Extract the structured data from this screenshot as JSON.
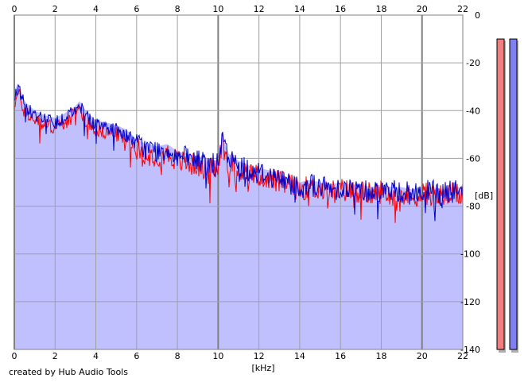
{
  "credit": "created by Hub Audio Tools",
  "colors": {
    "series_left": "#ff0000",
    "series_right": "#0000cc",
    "fill": "#c0c0ff",
    "grid": "#a0a0a0",
    "grid_major": "#808080",
    "meter_left": "#f08080",
    "meter_right": "#8080f0"
  },
  "chart_data": {
    "type": "line",
    "title": "",
    "xlabel": "[kHz]",
    "ylabel": "[dB]",
    "xlim": [
      0,
      22
    ],
    "ylim": [
      -140,
      0
    ],
    "x_ticks": [
      "0",
      "2",
      "4",
      "6",
      "8",
      "10",
      "12",
      "14",
      "16",
      "18",
      "20",
      "22"
    ],
    "y_ticks": [
      "0",
      "-20",
      "-40",
      "-60",
      "-80",
      "-100",
      "-120",
      "-140"
    ],
    "x_tick_values": [
      0,
      2,
      4,
      6,
      8,
      10,
      12,
      14,
      16,
      18,
      20,
      22
    ],
    "y_tick_values": [
      0,
      -20,
      -40,
      -60,
      -80,
      -100,
      -120,
      -140
    ],
    "grid": true,
    "area_fill": true,
    "series": [
      {
        "color": "#ff0000",
        "x": [
          0.0,
          0.2,
          0.5,
          1.0,
          1.5,
          2.0,
          2.5,
          3.0,
          3.2,
          3.5,
          4.0,
          4.5,
          5.0,
          5.5,
          6.0,
          6.5,
          7.0,
          7.5,
          8.0,
          8.5,
          9.0,
          9.5,
          10.0,
          10.2,
          10.5,
          11.0,
          11.5,
          12.0,
          12.5,
          13.0,
          13.5,
          14.0,
          14.5,
          15.0,
          15.5,
          16.0,
          16.5,
          17.0,
          17.5,
          18.0,
          18.5,
          19.0,
          19.5,
          20.0,
          20.5,
          21.0,
          21.5,
          22.0
        ],
        "y": [
          -37,
          -33,
          -40,
          -44,
          -46,
          -47,
          -45,
          -41,
          -39,
          -44,
          -48,
          -49,
          -50,
          -52,
          -56,
          -58,
          -59,
          -58,
          -61,
          -62,
          -63,
          -64,
          -65,
          -52,
          -62,
          -64,
          -66,
          -67,
          -68,
          -70,
          -71,
          -73,
          -72,
          -73,
          -74,
          -73,
          -74,
          -74,
          -75,
          -74,
          -75,
          -75,
          -76,
          -75,
          -75,
          -76,
          -75,
          -75
        ]
      },
      {
        "color": "#0000cc",
        "x": [
          0.0,
          0.2,
          0.5,
          1.0,
          1.5,
          2.0,
          2.5,
          3.0,
          3.2,
          3.5,
          4.0,
          4.5,
          5.0,
          5.5,
          6.0,
          6.5,
          7.0,
          7.5,
          8.0,
          8.5,
          9.0,
          9.5,
          10.0,
          10.2,
          10.5,
          11.0,
          11.5,
          12.0,
          12.5,
          13.0,
          13.5,
          14.0,
          14.5,
          15.0,
          15.5,
          16.0,
          16.5,
          17.0,
          17.5,
          18.0,
          18.5,
          19.0,
          19.5,
          20.0,
          20.5,
          21.0,
          21.5,
          22.0
        ],
        "y": [
          -34,
          -30,
          -38,
          -42,
          -44,
          -45,
          -43,
          -40,
          -38,
          -42,
          -46,
          -47,
          -48,
          -50,
          -54,
          -56,
          -57,
          -56,
          -59,
          -60,
          -61,
          -62,
          -63,
          -52,
          -60,
          -63,
          -65,
          -66,
          -67,
          -69,
          -70,
          -72,
          -71,
          -72,
          -73,
          -72,
          -73,
          -73,
          -74,
          -73,
          -74,
          -74,
          -75,
          -74,
          -74,
          -75,
          -74,
          -74
        ]
      }
    ],
    "meters": {
      "range_db": [
        -140,
        -10
      ],
      "left": -10,
      "right": -10
    }
  }
}
